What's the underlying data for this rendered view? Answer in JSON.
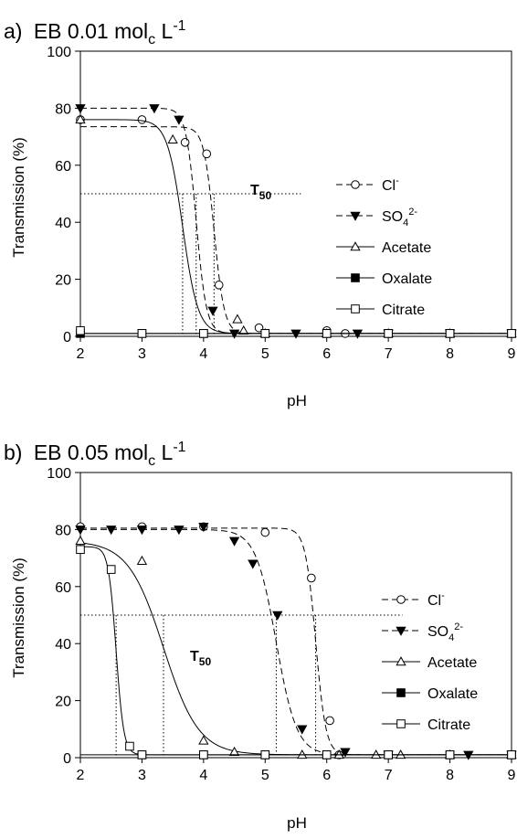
{
  "chart_data": [
    {
      "type": "line",
      "panel_label": "a)",
      "title_main": "EB 0.01 mol",
      "title_sub": "c",
      "title_unit": " L",
      "title_sup": "-1",
      "xlabel": "pH",
      "ylabel": "Transmission (%)",
      "xlim": [
        2,
        9
      ],
      "ylim": [
        0,
        100
      ],
      "xticks": [
        2,
        3,
        4,
        5,
        6,
        7,
        8,
        9
      ],
      "yticks": [
        0,
        20,
        40,
        60,
        80,
        100
      ],
      "grid": false,
      "legend_position": "right",
      "t50": {
        "label_main": "T",
        "label_sub": "50",
        "level": 50,
        "x_markers": [
          3.66,
          3.88,
          4.17
        ]
      },
      "series": [
        {
          "name": "Cl",
          "name_sup": "-",
          "marker": "circle-open",
          "line": "dashed",
          "x": [
            2.0,
            3.0,
            3.7,
            4.05,
            4.25,
            4.9,
            6.0,
            6.3,
            7.0,
            8.0,
            9.0
          ],
          "y": [
            76,
            76,
            68,
            64,
            18,
            3,
            2,
            1,
            1,
            1,
            1
          ],
          "fit": {
            "top": 73.5,
            "bottom": 1,
            "mid": 4.17,
            "slope": 12
          }
        },
        {
          "name": "SO",
          "name_sub": "4",
          "name_sup": "2-",
          "marker": "triangle-down-filled",
          "line": "dashed",
          "x": [
            2.0,
            3.2,
            3.6,
            4.15,
            4.5,
            5.5,
            6.5,
            7.0,
            8.0,
            9.0
          ],
          "y": [
            80,
            80,
            76,
            9,
            1,
            1,
            1,
            1,
            1,
            1
          ],
          "fit": {
            "top": 80,
            "bottom": 1,
            "mid": 3.88,
            "slope": 12
          }
        },
        {
          "name": "Acetate",
          "marker": "triangle-up-open",
          "line": "solid",
          "x": [
            2.0,
            3.5,
            4.55,
            4.65,
            5.0,
            6.0,
            7.0,
            8.0,
            9.0
          ],
          "y": [
            76,
            69,
            6,
            2,
            1,
            1,
            1,
            1,
            1
          ],
          "fit": {
            "top": 76,
            "bottom": 1,
            "mid": 3.66,
            "slope": 8
          }
        },
        {
          "name": "Oxalate",
          "marker": "square-filled",
          "line": "solid",
          "x": [
            2.0,
            3.0,
            4.0,
            5.0,
            6.0,
            7.0,
            8.0,
            9.0
          ],
          "y": [
            1,
            1,
            1,
            1,
            1,
            1,
            1,
            1
          ],
          "fit": {
            "const": 1
          }
        },
        {
          "name": "Citrate",
          "marker": "square-open",
          "line": "solid",
          "x": [
            2.0,
            3.0,
            4.0,
            5.0,
            6.0,
            7.0,
            8.0,
            9.0
          ],
          "y": [
            2,
            1,
            1,
            1,
            1,
            1,
            1,
            1
          ],
          "fit": {
            "const": 1
          }
        }
      ]
    },
    {
      "type": "line",
      "panel_label": "b)",
      "title_main": "EB 0.05 mol",
      "title_sub": "c",
      "title_unit": " L",
      "title_sup": "-1",
      "xlabel": "pH",
      "ylabel": "Transmission (%)",
      "xlim": [
        2,
        9
      ],
      "ylim": [
        0,
        100
      ],
      "xticks": [
        2,
        3,
        4,
        5,
        6,
        7,
        8,
        9
      ],
      "yticks": [
        0,
        20,
        40,
        60,
        80,
        100
      ],
      "grid": false,
      "legend_position": "right",
      "t50": {
        "label_main": "T",
        "label_sub": "50",
        "level": 50,
        "x_markers": [
          2.58,
          3.35,
          5.18,
          5.82
        ]
      },
      "series": [
        {
          "name": "Cl",
          "name_sup": "-",
          "marker": "circle-open",
          "line": "dashed",
          "x": [
            2.0,
            3.0,
            4.0,
            5.0,
            5.75,
            6.05,
            6.2,
            7.0,
            8.0,
            9.0
          ],
          "y": [
            81,
            81,
            81,
            79,
            63,
            13,
            1,
            1,
            1,
            1
          ],
          "fit": {
            "top": 80.5,
            "bottom": 1,
            "mid": 5.82,
            "slope": 12
          }
        },
        {
          "name": "SO",
          "name_sub": "4",
          "name_sup": "2-",
          "marker": "triangle-down-filled",
          "line": "dashed",
          "x": [
            2.0,
            2.5,
            3.0,
            3.6,
            4.0,
            4.5,
            4.8,
            5.2,
            5.6,
            6.3,
            7.0,
            8.3,
            9.0
          ],
          "y": [
            80,
            80,
            80,
            80,
            81,
            76,
            68,
            50,
            10,
            2,
            1,
            1,
            1
          ],
          "fit": {
            "top": 80,
            "bottom": 1,
            "mid": 5.18,
            "slope": 6
          }
        },
        {
          "name": "Acetate",
          "marker": "triangle-up-open",
          "line": "solid",
          "x": [
            2.0,
            3.0,
            4.0,
            4.5,
            5.6,
            6.2,
            6.8,
            7.2,
            8.0,
            9.0
          ],
          "y": [
            76,
            69,
            6,
            2,
            1,
            1,
            1,
            1,
            1,
            1
          ],
          "fit": {
            "top": 76,
            "bottom": 1,
            "mid": 3.35,
            "slope": 3.5
          }
        },
        {
          "name": "Oxalate",
          "marker": "square-filled",
          "line": "solid",
          "x": [
            3.0,
            4.0,
            5.0,
            6.0,
            7.0,
            8.0,
            9.0
          ],
          "y": [
            1,
            1,
            1,
            1,
            1,
            1,
            1
          ],
          "fit": {
            "const": 1
          }
        },
        {
          "name": "Citrate",
          "marker": "square-open",
          "line": "solid",
          "x": [
            2.0,
            2.5,
            2.8,
            3.0,
            4.0,
            5.0,
            6.0,
            7.0,
            8.0,
            9.0
          ],
          "y": [
            73,
            66,
            4,
            1,
            1,
            1,
            1,
            1,
            1,
            1
          ],
          "fit": {
            "top": 74,
            "bottom": 1,
            "mid": 2.58,
            "slope": 16
          }
        }
      ]
    }
  ]
}
